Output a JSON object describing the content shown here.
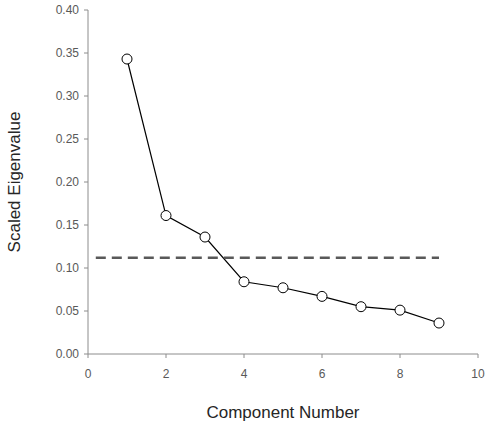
{
  "chart_data": {
    "type": "line",
    "x_label": "Component Number",
    "y_label": "Scaled Eigenvalue",
    "series": [
      {
        "x": [
          1,
          2,
          3,
          4,
          5,
          6,
          7,
          8,
          9
        ],
        "values": [
          0.343,
          0.161,
          0.136,
          0.084,
          0.077,
          0.067,
          0.055,
          0.051,
          0.036
        ],
        "color": "#000000",
        "marker": "circle",
        "line_style": "solid"
      },
      {
        "x": [
          0.2,
          9.0
        ],
        "values": [
          0.112,
          0.112
        ],
        "color": "#595959",
        "line_style": "dashed"
      }
    ],
    "xlim": [
      0,
      10
    ],
    "xticks": [
      0,
      2,
      4,
      6,
      8,
      10
    ],
    "ylim": [
      0,
      0.4
    ],
    "yticks": [
      {
        "value": 0,
        "label": "0.00"
      },
      {
        "value": 0.05,
        "label": "0.05"
      },
      {
        "value": 0.1,
        "label": "0.10"
      },
      {
        "value": 0.15,
        "label": "0.15"
      },
      {
        "value": 0.2,
        "label": "0.20"
      },
      {
        "value": 0.25,
        "label": "0.25"
      },
      {
        "value": 0.3,
        "label": "0.30"
      },
      {
        "value": 0.35,
        "label": "0.35"
      },
      {
        "value": 0.4,
        "label": "0.40"
      }
    ],
    "grid": false
  }
}
